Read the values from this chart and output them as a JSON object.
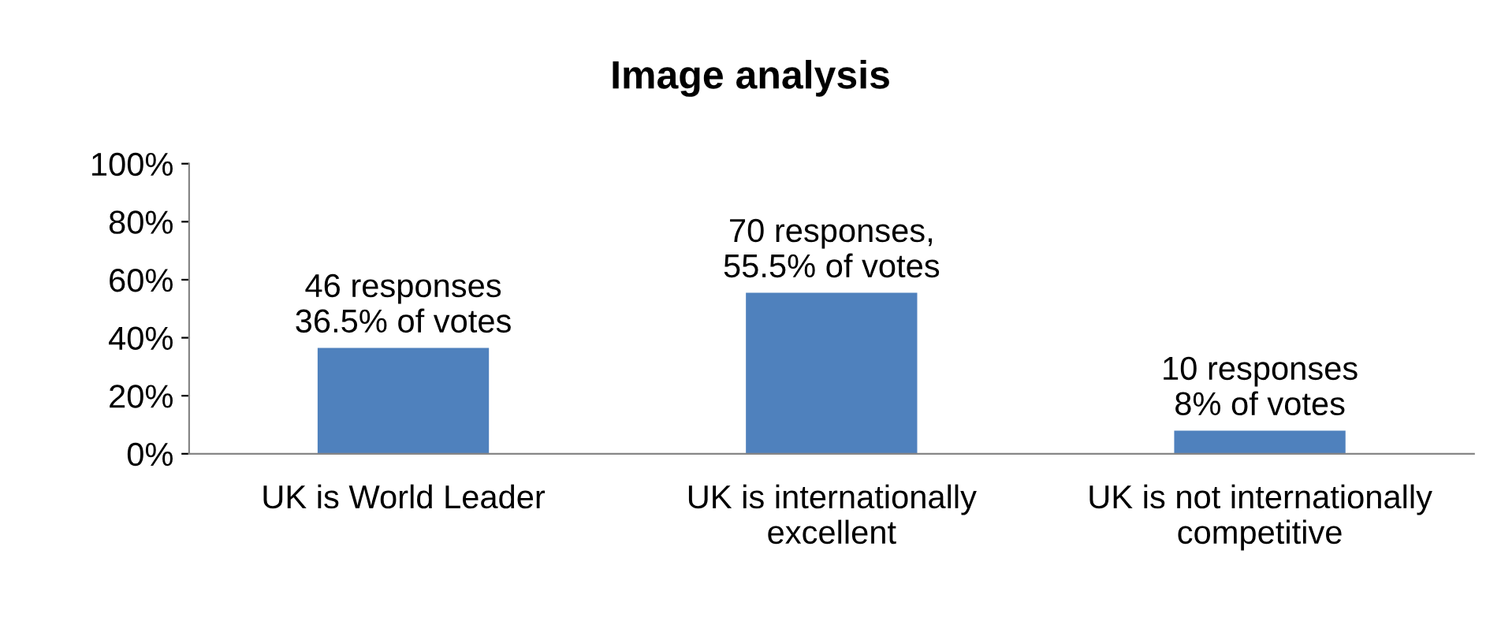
{
  "chart_data": {
    "type": "bar",
    "title": "Image analysis",
    "categories": [
      "UK is World Leader",
      "UK is internationally\nexcellent",
      "UK is not internationally\ncompetitive"
    ],
    "values": [
      36.5,
      55.5,
      8
    ],
    "color": "#4f81bd",
    "value_labels": [
      "46 responses\n36.5% of votes",
      "70 responses,\n55.5% of votes",
      "10 responses\n8% of votes"
    ],
    "ylim": [
      0,
      100
    ],
    "yticks": [
      {
        "value": 0,
        "label": "0%"
      },
      {
        "value": 20,
        "label": "20%"
      },
      {
        "value": 40,
        "label": "40%"
      },
      {
        "value": 60,
        "label": "60%"
      },
      {
        "value": 80,
        "label": "80%"
      },
      {
        "value": 100,
        "label": "100%"
      }
    ],
    "grid": false,
    "legend": false
  }
}
